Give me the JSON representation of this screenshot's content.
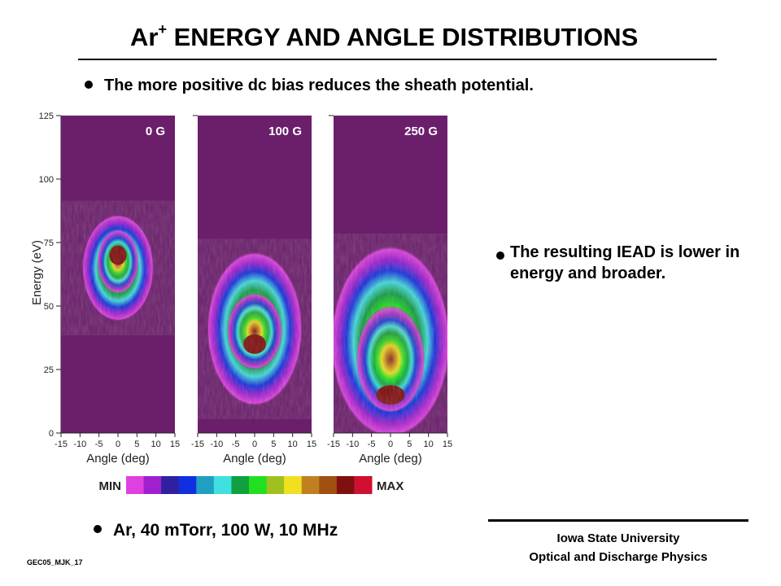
{
  "title": {
    "prefix": "Ar",
    "superscript": "+",
    "rest": " ENERGY AND ANGLE DISTRIBUTIONS"
  },
  "bullets": [
    "The more positive dc bias reduces the sheath potential.",
    "The resulting IEAD is lower in energy and broader.",
    "Ar, 40 mTorr, 100 W, 10 MHz"
  ],
  "institution": {
    "line1": "Iowa State University",
    "line2": "Optical and Discharge Physics"
  },
  "slide_id": "GEC05_MJK_17",
  "chart_data": {
    "type": "heatmap",
    "ylabel": "Energy (eV)",
    "xlabel": "Angle (deg)",
    "xlim": [
      -15,
      15
    ],
    "ylim": [
      0,
      125
    ],
    "x_ticks": [
      "-15",
      "-10",
      "-5",
      "0",
      "5",
      "10",
      "15"
    ],
    "y_ticks": [
      "0",
      "25",
      "50",
      "75",
      "100",
      "125"
    ],
    "colorbar": {
      "min_label": "MIN",
      "max_label": "MAX",
      "colors": [
        "#e040e0",
        "#a020d0",
        "#3020a0",
        "#1030e0",
        "#20a0c0",
        "#40e0e0",
        "#10a040",
        "#20e020",
        "#a0c020",
        "#f0e020",
        "#c08020",
        "#a05010",
        "#801010",
        "#d01030"
      ]
    },
    "background_color": "#6b1f6b",
    "panels": [
      {
        "label": "0 G",
        "peak_energy_ev": 70,
        "core_range_ev": [
          55,
          80
        ],
        "extent_range_ev": [
          45,
          85
        ],
        "angle_halfwidth_deg": 9
      },
      {
        "label": "100 G",
        "peak_energy_ev": 35,
        "core_range_ev": [
          25,
          55
        ],
        "extent_range_ev": [
          12,
          70
        ],
        "angle_halfwidth_deg": 12
      },
      {
        "label": "250 G",
        "peak_energy_ev": 15,
        "core_range_ev": [
          8,
          50
        ],
        "extent_range_ev": [
          0,
          72
        ],
        "angle_halfwidth_deg": 15
      }
    ]
  }
}
